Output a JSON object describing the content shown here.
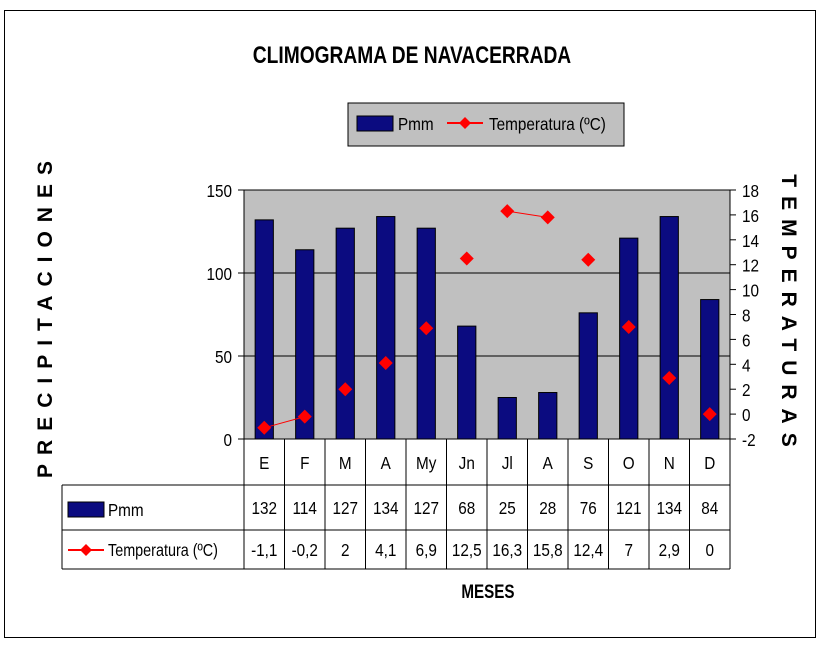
{
  "chart_data": {
    "type": "bar",
    "title": "CLIMOGRAMA DE NAVACERRADA",
    "xlabel": "MESES",
    "ylabel": "PRECIPITACIONES",
    "y2label": "TEMPERATURAS",
    "categories": [
      "E",
      "F",
      "M",
      "A",
      "My",
      "Jn",
      "Jl",
      "A",
      "S",
      "O",
      "N",
      "D"
    ],
    "series": [
      {
        "name": "Pmm",
        "type": "bar",
        "axis": "left",
        "color": "#0b0b80",
        "values": [
          132,
          114,
          127,
          134,
          127,
          68,
          25,
          28,
          76,
          121,
          134,
          84
        ]
      },
      {
        "name": "Temperatura (ºC)",
        "type": "line",
        "axis": "right",
        "color": "#ff0000",
        "values": [
          -1.1,
          -0.2,
          2,
          4.1,
          6.9,
          12.5,
          16.3,
          15.8,
          12.4,
          7,
          2.9,
          0
        ],
        "labels": [
          "-1,1",
          "-0,2",
          "2",
          "4,1",
          "6,9",
          "12,5",
          "16,3",
          "15,8",
          "12,4",
          "7",
          "2,9",
          "0"
        ]
      }
    ],
    "ylim": [
      0,
      150
    ],
    "yticks": [
      "0",
      "50",
      "100",
      "150"
    ],
    "y2lim": [
      -2,
      18
    ],
    "y2ticks": [
      "-2",
      "0",
      "2",
      "4",
      "6",
      "8",
      "10",
      "12",
      "14",
      "16",
      "18"
    ],
    "plot_background": "#c0c0c0",
    "grid": true,
    "legend": "top-center",
    "data_table": true
  }
}
